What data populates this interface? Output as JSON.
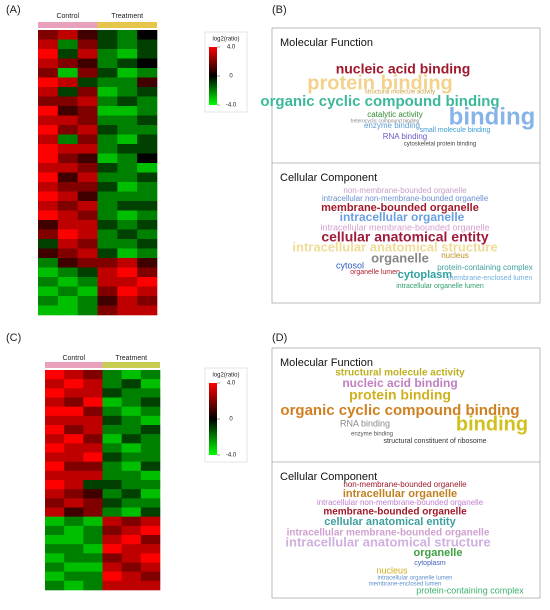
{
  "panels": [
    {
      "label": "(A)",
      "heatmap": {
        "columns": [
          "Control",
          "Treatment"
        ],
        "column_colors": [
          "#e8a0bc",
          "#e6c64a"
        ],
        "rows": [
          [
            2,
            3,
            1,
            -1,
            -2,
            0
          ],
          [
            3,
            -2,
            2,
            -1,
            -2,
            -1
          ],
          [
            4,
            -1,
            3,
            -2,
            -3,
            -1
          ],
          [
            3,
            2,
            1,
            -2,
            -1,
            0
          ],
          [
            2,
            -3,
            2,
            -1,
            -3,
            -2
          ],
          [
            4,
            3,
            -1,
            -2,
            -2,
            1
          ],
          [
            3,
            -1,
            2,
            -3,
            -2,
            -1
          ],
          [
            2,
            2,
            3,
            -2,
            -1,
            -2
          ],
          [
            4,
            1,
            2,
            -3,
            -3,
            -2
          ],
          [
            3,
            3,
            2,
            -2,
            -2,
            -1
          ],
          [
            4,
            2,
            3,
            -1,
            -2,
            -2
          ],
          [
            3,
            -2,
            2,
            -2,
            -3,
            -1
          ],
          [
            4,
            3,
            3,
            -2,
            -1,
            -1
          ],
          [
            4,
            2,
            1,
            -3,
            -2,
            0
          ],
          [
            3,
            3,
            2,
            -1,
            -2,
            -3
          ],
          [
            4,
            1,
            3,
            -2,
            -2,
            -1
          ],
          [
            3,
            2,
            2,
            -1,
            -3,
            -2
          ],
          [
            4,
            3,
            1,
            -2,
            -2,
            -2
          ],
          [
            3,
            2,
            3,
            -2,
            -1,
            -1
          ],
          [
            4,
            3,
            2,
            -2,
            -3,
            -2
          ],
          [
            1,
            3,
            3,
            -1,
            -2,
            -1
          ],
          [
            2,
            4,
            3,
            -2,
            -1,
            -2
          ],
          [
            -1,
            3,
            2,
            -2,
            -2,
            -1
          ],
          [
            1,
            2,
            3,
            -1,
            -3,
            -2
          ],
          [
            -2,
            1,
            2,
            2,
            3,
            1
          ],
          [
            -3,
            -2,
            -1,
            3,
            4,
            2
          ],
          [
            -2,
            -3,
            -2,
            3,
            3,
            4
          ],
          [
            -3,
            -2,
            -3,
            2,
            4,
            3
          ],
          [
            -2,
            -3,
            -2,
            1,
            3,
            2
          ],
          [
            -3,
            -3,
            -2,
            2,
            3,
            3
          ]
        ],
        "colorbar": {
          "title": "log2(ratio)",
          "lim": [
            -4,
            4
          ],
          "ticks": [
            {
              "value": 4,
              "label": "4.0"
            },
            0,
            {
              "value": -4,
              "label": "-4.0"
            }
          ],
          "colors": [
            "#00ff00",
            "#000000",
            "#ff0000"
          ]
        }
      }
    },
    {
      "label": "(B)",
      "sections": [
        {
          "title": "Molecular Function",
          "words": [
            {
              "text": "nucleic acid binding",
              "color": "#a0182b"
            },
            {
              "text": "protein binding",
              "color": "#f3d28c"
            },
            {
              "text": "organic cyclic compound binding",
              "color": "#3cb89b"
            },
            {
              "text": "binding",
              "color": "#86b3e8"
            },
            {
              "text": "catalytic activity",
              "color": "#2e8b2e"
            },
            {
              "text": "structural molecule activity",
              "color": "#c9a040"
            },
            {
              "text": "enzyme binding",
              "color": "#5a9bd5"
            },
            {
              "text": "small molecule binding",
              "color": "#3c9bd5"
            },
            {
              "text": "RNA binding",
              "color": "#6a5acd"
            },
            {
              "text": "cytoskeletal protein binding",
              "color": "#444444"
            },
            {
              "text": "heterocyclic compound binding",
              "color": "#888888"
            }
          ]
        },
        {
          "title": "Cellular Component",
          "words": [
            {
              "text": "non-membrane-bounded organelle",
              "color": "#c9a0c8"
            },
            {
              "text": "intracellular non-membrane-bounded organelle",
              "color": "#6a8fd0"
            },
            {
              "text": "membrane-bounded organelle",
              "color": "#a01a2a"
            },
            {
              "text": "intracellular organelle",
              "color": "#6aa0e0"
            },
            {
              "text": "intracellular membrane-bounded organelle",
              "color": "#d8a0d0"
            },
            {
              "text": "cellular anatomical entity",
              "color": "#a01a3a"
            },
            {
              "text": "intracellular anatomical structure",
              "color": "#f0dc98"
            },
            {
              "text": "organelle",
              "color": "#888888"
            },
            {
              "text": "nucleus",
              "color": "#c09020"
            },
            {
              "text": "cytosol",
              "color": "#3060c0"
            },
            {
              "text": "organelle lumen",
              "color": "#b02030"
            },
            {
              "text": "cytoplasm",
              "color": "#30a0a0"
            },
            {
              "text": "protein-containing complex",
              "color": "#40a0a0"
            },
            {
              "text": "membrane-enclosed lumen",
              "color": "#70b0e0"
            },
            {
              "text": "intracellular organelle lumen",
              "color": "#30a070"
            }
          ]
        }
      ]
    },
    {
      "label": "(C)",
      "heatmap": {
        "columns": [
          "Control",
          "Treatment"
        ],
        "column_colors": [
          "#e8a0bc",
          "#c8cc50"
        ],
        "rows": [
          [
            4,
            3,
            2,
            -2,
            -3,
            -2
          ],
          [
            3,
            4,
            3,
            -2,
            -1,
            -3
          ],
          [
            4,
            3,
            3,
            -1,
            -2,
            -2
          ],
          [
            3,
            2,
            4,
            -3,
            -2,
            -1
          ],
          [
            4,
            4,
            2,
            -2,
            -3,
            -2
          ],
          [
            3,
            3,
            3,
            -1,
            -2,
            -3
          ],
          [
            4,
            2,
            3,
            -2,
            -2,
            -1
          ],
          [
            3,
            4,
            2,
            -3,
            -1,
            -2
          ],
          [
            4,
            3,
            3,
            -2,
            -3,
            -2
          ],
          [
            3,
            3,
            4,
            -1,
            -2,
            -2
          ],
          [
            4,
            2,
            2,
            -2,
            -3,
            -1
          ],
          [
            3,
            3,
            3,
            -2,
            -2,
            -3
          ],
          [
            4,
            3,
            -1,
            -1,
            -2,
            -2
          ],
          [
            3,
            2,
            1,
            -2,
            -1,
            -3
          ],
          [
            2,
            3,
            2,
            -1,
            -2,
            -2
          ],
          [
            3,
            1,
            2,
            -2,
            -3,
            -1
          ],
          [
            -3,
            -2,
            -3,
            3,
            2,
            3
          ],
          [
            -2,
            -3,
            -2,
            2,
            3,
            4
          ],
          [
            -3,
            -3,
            -2,
            3,
            4,
            2
          ],
          [
            -2,
            -2,
            -3,
            4,
            3,
            3
          ],
          [
            -3,
            -2,
            -2,
            2,
            3,
            4
          ],
          [
            -2,
            -3,
            -3,
            3,
            2,
            3
          ],
          [
            -3,
            -2,
            -2,
            4,
            3,
            2
          ],
          [
            -2,
            -3,
            -2,
            3,
            3,
            3
          ]
        ],
        "colorbar": {
          "title": "log2(ratio)",
          "lim": [
            -4,
            4
          ],
          "ticks": [
            {
              "value": 4,
              "label": "4.0"
            },
            0,
            {
              "value": -4,
              "label": "-4.0"
            }
          ],
          "colors": [
            "#00ff00",
            "#000000",
            "#ff0000"
          ]
        }
      }
    },
    {
      "label": "(D)",
      "sections": [
        {
          "title": "Molecular Function",
          "words": [
            {
              "text": "structural molecule activity",
              "color": "#c0b020"
            },
            {
              "text": "nucleic acid binding",
              "color": "#c080c0"
            },
            {
              "text": "protein binding",
              "color": "#d0b020"
            },
            {
              "text": "organic cyclic compound binding",
              "color": "#d08020"
            },
            {
              "text": "binding",
              "color": "#d0c020"
            },
            {
              "text": "RNA binding",
              "color": "#888888"
            },
            {
              "text": "enzyme binding",
              "color": "#555555"
            },
            {
              "text": "structural constituent of ribosome",
              "color": "#333333"
            }
          ]
        },
        {
          "title": "Cellular Component",
          "words": [
            {
              "text": "non-membrane-bounded organelle",
              "color": "#a01a2a"
            },
            {
              "text": "intracellular organelle",
              "color": "#c08020"
            },
            {
              "text": "intracellular non-membrane-bounded organelle",
              "color": "#c080d0"
            },
            {
              "text": "membrane-bounded organelle",
              "color": "#a01a2a"
            },
            {
              "text": "cellular anatomical entity",
              "color": "#40a0a0"
            },
            {
              "text": "intracellular membrane-bounded organelle",
              "color": "#d0a0d0"
            },
            {
              "text": "intracellular anatomical structure",
              "color": "#d0b0e0"
            },
            {
              "text": "organelle",
              "color": "#40a040"
            },
            {
              "text": "cytoplasm",
              "color": "#4060c0"
            },
            {
              "text": "nucleus",
              "color": "#d0b020"
            },
            {
              "text": "intracellular organelle lumen",
              "color": "#6090d0"
            },
            {
              "text": "membrane-enclosed lumen",
              "color": "#6090d0"
            },
            {
              "text": "protein-containing complex",
              "color": "#40b070"
            }
          ]
        }
      ]
    }
  ]
}
